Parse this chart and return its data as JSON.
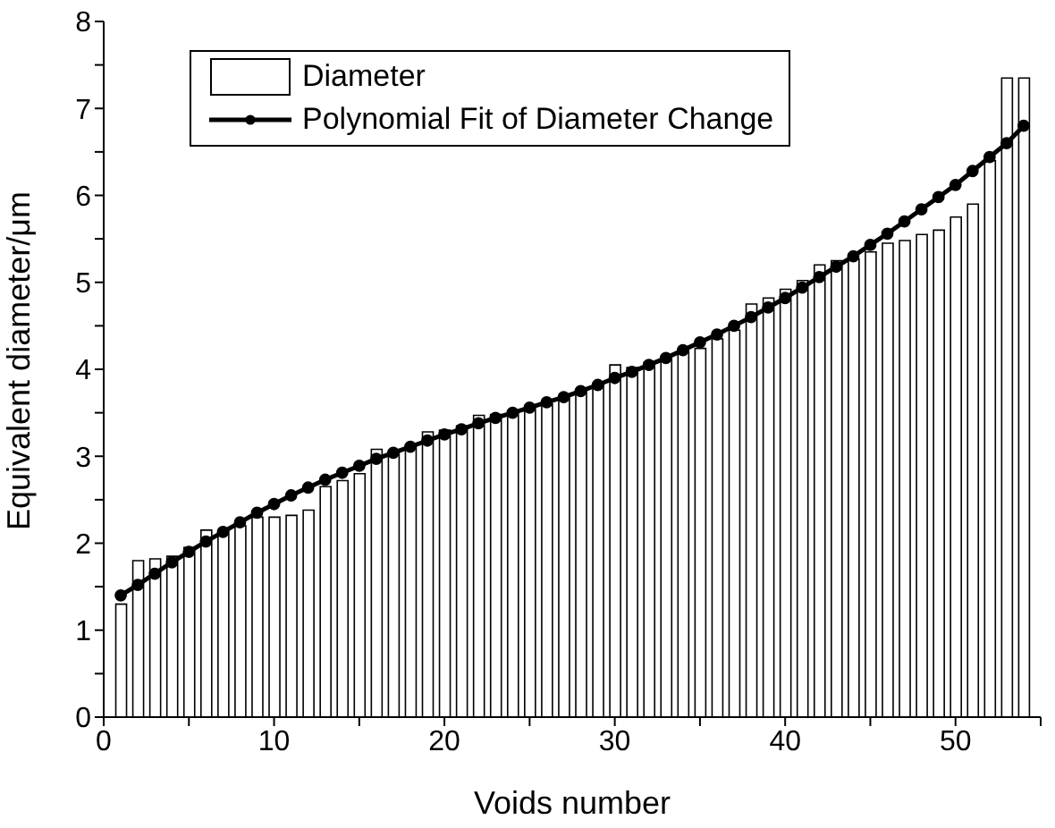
{
  "chart_data": {
    "type": "bar",
    "xlabel": "Voids number",
    "ylabel": "Equivalent diameter/μm",
    "xlim": [
      0,
      55
    ],
    "ylim": [
      0,
      8
    ],
    "xticks": [
      0,
      {
        "value": 5,
        "label": null
      },
      10,
      {
        "value": 15,
        "label": null
      },
      20,
      {
        "value": 25,
        "label": null
      },
      30,
      {
        "value": 35,
        "label": null
      },
      40,
      {
        "value": 45,
        "label": null
      },
      50,
      {
        "value": 55,
        "label": null
      }
    ],
    "yticks": [
      0,
      {
        "value": 0.5,
        "label": null
      },
      1,
      {
        "value": 1.5,
        "label": null
      },
      2,
      {
        "value": 2.5,
        "label": null
      },
      3,
      {
        "value": 3.5,
        "label": null
      },
      4,
      {
        "value": 4.5,
        "label": null
      },
      5,
      {
        "value": 5.5,
        "label": null
      },
      6,
      {
        "value": 6.5,
        "label": null
      },
      7,
      {
        "value": 7.5,
        "label": null
      },
      8
    ],
    "grid": false,
    "legend": "top left",
    "series": [
      {
        "name": "Diameter",
        "color": "#ffffff",
        "x": [
          1,
          2,
          3,
          4,
          5,
          6,
          7,
          8,
          9,
          10,
          11,
          12,
          13,
          14,
          15,
          16,
          17,
          18,
          19,
          20,
          21,
          22,
          23,
          24,
          25,
          26,
          27,
          28,
          29,
          30,
          31,
          32,
          33,
          34,
          35,
          36,
          37,
          38,
          39,
          40,
          41,
          42,
          43,
          44,
          45,
          46,
          47,
          48,
          49,
          50,
          51,
          52,
          53,
          54
        ],
        "values": [
          1.3,
          1.8,
          1.82,
          1.85,
          1.95,
          2.15,
          2.15,
          2.2,
          2.3,
          2.3,
          2.32,
          2.38,
          2.65,
          2.72,
          2.8,
          3.08,
          3.05,
          3.12,
          3.28,
          3.3,
          3.35,
          3.47,
          3.48,
          3.52,
          3.55,
          3.6,
          3.68,
          3.75,
          3.82,
          4.05,
          4.02,
          4.08,
          4.12,
          4.22,
          4.24,
          4.35,
          4.45,
          4.75,
          4.82,
          4.92,
          5.02,
          5.2,
          5.25,
          5.27,
          5.35,
          5.45,
          5.48,
          5.55,
          5.6,
          5.75,
          5.9,
          6.4,
          7.35,
          7.35
        ]
      },
      {
        "name": "Polynomial Fit of Diameter Change",
        "type": "line",
        "color": "#000000",
        "marker": "circle",
        "line_style": "solid",
        "x": [
          1,
          2,
          3,
          4,
          5,
          6,
          7,
          8,
          9,
          10,
          11,
          12,
          13,
          14,
          15,
          16,
          17,
          18,
          19,
          20,
          21,
          22,
          23,
          24,
          25,
          26,
          27,
          28,
          29,
          30,
          31,
          32,
          33,
          34,
          35,
          36,
          37,
          38,
          39,
          40,
          41,
          42,
          43,
          44,
          45,
          46,
          47,
          48,
          49,
          50,
          51,
          52,
          53,
          54
        ],
        "values": [
          1.4,
          1.52,
          1.65,
          1.78,
          1.9,
          2.02,
          2.13,
          2.24,
          2.35,
          2.45,
          2.55,
          2.64,
          2.73,
          2.81,
          2.89,
          2.97,
          3.04,
          3.11,
          3.18,
          3.25,
          3.31,
          3.38,
          3.44,
          3.5,
          3.56,
          3.62,
          3.68,
          3.75,
          3.82,
          3.9,
          3.97,
          4.05,
          4.13,
          4.22,
          4.31,
          4.4,
          4.5,
          4.6,
          4.71,
          4.82,
          4.94,
          5.06,
          5.18,
          5.3,
          5.43,
          5.56,
          5.7,
          5.84,
          5.98,
          6.12,
          6.28,
          6.44,
          6.6,
          6.8
        ]
      }
    ]
  }
}
